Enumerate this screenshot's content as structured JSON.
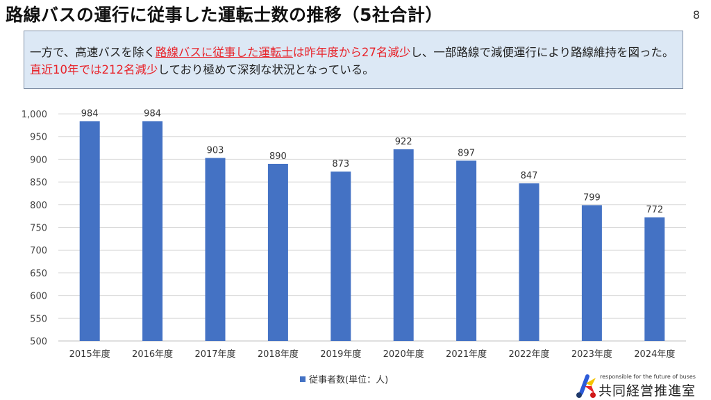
{
  "header": {
    "title": "路線バスの運行に従事した運転士数の推移（5社合計）",
    "page_number": "8"
  },
  "note": {
    "p1": "一方で、高速バスを除く",
    "p2": "路線バスに従事した運転士",
    "p3": "は昨年度から27名減少",
    "p4": "し、一部路線で減便運行により路線維持を図った。",
    "p5": "直近10年では212名減少",
    "p6": "しており極めて深刻な状況となっている。"
  },
  "logo": {
    "tagline": "responsible for the future of buses",
    "name": "共同経営推進室"
  },
  "colors": {
    "bar": "#4472c4",
    "accent": "#e8232a"
  },
  "chart_data": {
    "type": "bar",
    "categories": [
      "2015年度",
      "2016年度",
      "2017年度",
      "2018年度",
      "2019年度",
      "2020年度",
      "2021年度",
      "2022年度",
      "2023年度",
      "2024年度"
    ],
    "series": [
      {
        "name": "従事者数(単位：人)",
        "values": [
          984,
          984,
          903,
          890,
          873,
          922,
          897,
          847,
          799,
          772
        ]
      }
    ],
    "ylim": [
      500,
      1000
    ],
    "yticks": [
      "500",
      "550",
      "600",
      "650",
      "700",
      "750",
      "800",
      "850",
      "900",
      "950",
      "1,000"
    ],
    "grid": true,
    "legend": "bottom"
  }
}
